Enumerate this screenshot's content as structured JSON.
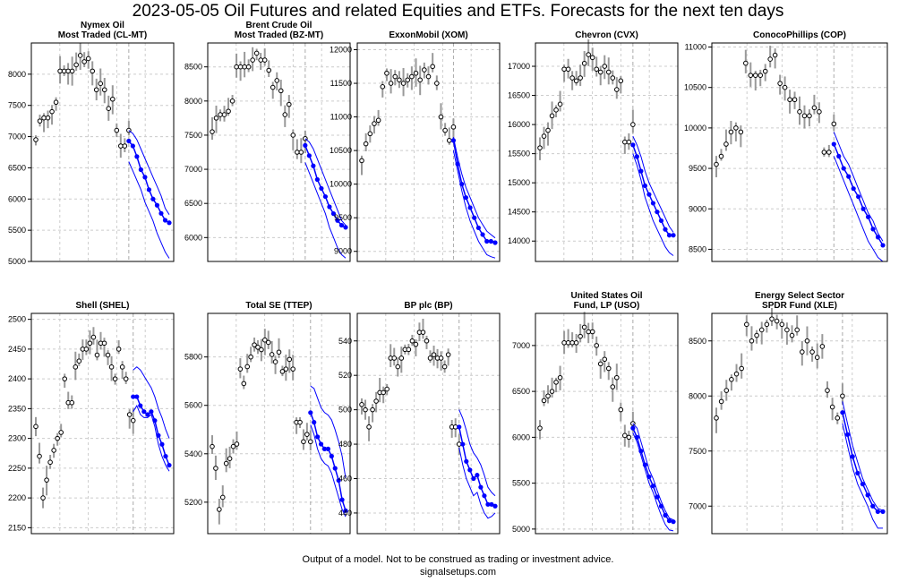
{
  "title": "2023-05-05 Oil Futures and related Equities and ETFs. Forecasts for the next ten days",
  "footer": {
    "disclaimer": "Output of a model. Not to be construed as trading or investment advice.",
    "site": "signalsetups.com"
  },
  "colors": {
    "history": "#000000",
    "range_bar": "#999999",
    "forecast": "#0000ff",
    "grid": "#cccccc"
  },
  "chart_data": [
    {
      "type": "line",
      "title_lines": [
        "Nymex Oil",
        "Most Traded (CL-MT)"
      ],
      "ylim": [
        5000,
        8500
      ],
      "ticks": [
        5000,
        5500,
        6000,
        6500,
        7000,
        7500,
        8000
      ],
      "history": [
        6950,
        7250,
        7300,
        7300,
        7400,
        7550,
        8050,
        8050,
        8050,
        8050,
        8150,
        8300,
        8200,
        8250,
        8050,
        7750,
        7850,
        7750,
        7450,
        7600,
        7100,
        6850,
        6850,
        7100
      ],
      "forecast": [
        6930,
        6850,
        6680,
        6470,
        6350,
        6150,
        6000,
        5900,
        5770,
        5660,
        5620
      ],
      "upper": [
        7100,
        7050,
        6950,
        6800,
        6650,
        6500,
        6350,
        6200,
        6050,
        5850,
        5750
      ],
      "lower": [
        6600,
        6450,
        6300,
        6150,
        5950,
        5800,
        5650,
        5450,
        5300,
        5150,
        5050
      ]
    },
    {
      "type": "line",
      "title_lines": [
        "Brent Crude Oil",
        "Most Traded (BZ-MT)"
      ],
      "ylim": [
        5650,
        8850
      ],
      "ticks": [
        6000,
        6500,
        7000,
        7500,
        8000,
        8500
      ],
      "history": [
        7550,
        7750,
        7800,
        7800,
        7850,
        8000,
        8500,
        8500,
        8500,
        8500,
        8600,
        8700,
        8600,
        8600,
        8450,
        8200,
        8300,
        8150,
        7800,
        7950,
        7500,
        7250,
        7250,
        7450
      ],
      "forecast": [
        7350,
        7200,
        7050,
        6850,
        6720,
        6600,
        6450,
        6350,
        6250,
        6180,
        6150
      ],
      "upper": [
        7450,
        7400,
        7300,
        7150,
        7000,
        6850,
        6700,
        6550,
        6400,
        6250,
        6180
      ],
      "lower": [
        7100,
        6950,
        6800,
        6650,
        6500,
        6350,
        6150,
        6000,
        5850,
        5750,
        5700
      ]
    },
    {
      "type": "line",
      "title_lines": [
        "ExxonMobil (XOM)"
      ],
      "ylim": [
        8850,
        12100
      ],
      "ticks": [
        9000,
        9500,
        10000,
        10500,
        11000,
        11500,
        12000
      ],
      "history": [
        10350,
        10600,
        10750,
        10900,
        10950,
        11450,
        11650,
        11500,
        11600,
        11550,
        11500,
        11550,
        11600,
        11650,
        11550,
        11700,
        11600,
        11750,
        11500,
        11000,
        10800,
        10650,
        10850
      ],
      "forecast": [
        10650,
        10300,
        10000,
        9800,
        9650,
        9500,
        9350,
        9250,
        9150,
        9150,
        9130
      ],
      "upper": [
        10700,
        10400,
        10150,
        9950,
        9800,
        9650,
        9500,
        9400,
        9300,
        9250,
        9200
      ],
      "lower": [
        10500,
        10200,
        9900,
        9650,
        9450,
        9300,
        9150,
        9050,
        8950,
        8920,
        8900
      ]
    },
    {
      "type": "line",
      "title_lines": [
        "Chevron (CVX)"
      ],
      "ylim": [
        13650,
        17400
      ],
      "ticks": [
        14000,
        14500,
        15000,
        15500,
        16000,
        16500,
        17000
      ],
      "history": [
        15600,
        15800,
        15900,
        16150,
        16250,
        16350,
        16950,
        16950,
        16800,
        16750,
        16800,
        17050,
        17200,
        17150,
        16950,
        16900,
        17000,
        16900,
        16800,
        16600,
        16750,
        15700,
        15700,
        16000
      ],
      "forecast": [
        15650,
        15450,
        15200,
        14950,
        14800,
        14650,
        14500,
        14350,
        14200,
        14100,
        14100
      ],
      "upper": [
        15800,
        15650,
        15450,
        15200,
        15000,
        14850,
        14700,
        14550,
        14400,
        14250,
        14150
      ],
      "lower": [
        15500,
        15300,
        15050,
        14750,
        14550,
        14350,
        14200,
        14050,
        13900,
        13800,
        13750
      ]
    },
    {
      "type": "line",
      "title_lines": [
        "ConocoPhillips (COP)"
      ],
      "ylim": [
        8350,
        11050
      ],
      "ticks": [
        8500,
        9000,
        9500,
        10000,
        10500,
        11000
      ],
      "history": [
        9550,
        9650,
        9800,
        9950,
        10000,
        9950,
        10800,
        10650,
        10650,
        10650,
        10700,
        10850,
        10900,
        10550,
        10500,
        10350,
        10350,
        10200,
        10150,
        10150,
        10250,
        10200,
        9700,
        9700,
        10050
      ],
      "forecast": [
        9800,
        9650,
        9500,
        9400,
        9250,
        9150,
        9000,
        8900,
        8750,
        8650,
        8550
      ],
      "upper": [
        9950,
        9800,
        9650,
        9550,
        9400,
        9250,
        9100,
        8950,
        8850,
        8700,
        8600
      ],
      "lower": [
        9650,
        9500,
        9350,
        9200,
        9050,
        8900,
        8750,
        8600,
        8500,
        8400,
        8350
      ]
    },
    {
      "type": "line",
      "title_lines": [
        "Shell (SHEL)"
      ],
      "ylim": [
        2140,
        2510
      ],
      "ticks": [
        2150,
        2200,
        2250,
        2300,
        2350,
        2400,
        2450,
        2500
      ],
      "history": [
        2320,
        2270,
        2200,
        2230,
        2260,
        2280,
        2300,
        2310,
        2400,
        2360,
        2360,
        2420,
        2430,
        2450,
        2450,
        2460,
        2470,
        2440,
        2460,
        2460,
        2440,
        2420,
        2400,
        2450,
        2420,
        2400,
        2340,
        2330
      ],
      "forecast": [
        2370,
        2370,
        2355,
        2345,
        2340,
        2345,
        2330,
        2305,
        2290,
        2270,
        2255
      ],
      "upper": [
        2415,
        2420,
        2415,
        2405,
        2395,
        2385,
        2370,
        2350,
        2335,
        2315,
        2300
      ],
      "lower": [
        2345,
        2355,
        2340,
        2335,
        2335,
        2340,
        2320,
        2290,
        2270,
        2255,
        2245
      ]
    },
    {
      "type": "line",
      "title_lines": [
        "Total SE (TTEP)"
      ],
      "ylim": [
        5070,
        5980
      ],
      "ticks": [
        5200,
        5400,
        5600,
        5800
      ],
      "history": [
        5430,
        5340,
        5170,
        5220,
        5360,
        5380,
        5430,
        5440,
        5750,
        5690,
        5760,
        5800,
        5850,
        5840,
        5830,
        5870,
        5860,
        5810,
        5780,
        5820,
        5740,
        5750,
        5790,
        5750,
        5530,
        5530,
        5450,
        5480,
        5450
      ],
      "forecast": [
        5570,
        5530,
        5470,
        5440,
        5420,
        5420,
        5390,
        5340,
        5290,
        5210,
        5165
      ],
      "upper": [
        5680,
        5670,
        5630,
        5590,
        5570,
        5560,
        5540,
        5500,
        5450,
        5390,
        5300
      ],
      "lower": [
        5520,
        5480,
        5420,
        5380,
        5360,
        5350,
        5320,
        5270,
        5220,
        5170,
        5140
      ]
    },
    {
      "type": "line",
      "title_lines": [
        "BP plc (BP)"
      ],
      "ylim": [
        428,
        556
      ],
      "ticks": [
        440,
        460,
        480,
        500,
        520,
        540
      ],
      "history": [
        503,
        500,
        490,
        500,
        505,
        510,
        510,
        512,
        530,
        530,
        525,
        530,
        535,
        535,
        540,
        538,
        545,
        545,
        540,
        530,
        532,
        530,
        530,
        525,
        532,
        490,
        490,
        480
      ],
      "forecast": [
        490,
        480,
        470,
        465,
        460,
        462,
        455,
        450,
        445,
        445,
        444
      ],
      "upper": [
        500,
        495,
        488,
        480,
        475,
        472,
        468,
        462,
        455,
        452,
        450
      ],
      "lower": [
        478,
        468,
        460,
        455,
        450,
        452,
        445,
        440,
        437,
        438,
        440
      ]
    },
    {
      "type": "line",
      "title_lines": [
        "United States Oil",
        "Fund, LP (USO)"
      ],
      "ylim": [
        4950,
        7350
      ],
      "ticks": [
        5000,
        5500,
        6000,
        6500,
        7000
      ],
      "history": [
        6100,
        6400,
        6450,
        6500,
        6600,
        6650,
        7030,
        7030,
        7030,
        7030,
        7100,
        7200,
        7150,
        7150,
        7000,
        6800,
        6850,
        6750,
        6550,
        6650,
        6300,
        6020,
        6000,
        6150
      ],
      "forecast": [
        6100,
        6000,
        5850,
        5700,
        5570,
        5470,
        5350,
        5250,
        5150,
        5090,
        5080
      ],
      "upper": [
        6150,
        6100,
        5950,
        5800,
        5650,
        5550,
        5420,
        5300,
        5200,
        5120,
        5100
      ],
      "lower": [
        6050,
        5950,
        5800,
        5650,
        5500,
        5400,
        5270,
        5150,
        5050,
        4990,
        4980
      ]
    },
    {
      "type": "line",
      "title_lines": [
        "Energy Select Sector",
        "SPDR Fund (XLE)"
      ],
      "ylim": [
        6750,
        8750
      ],
      "ticks": [
        7000,
        7500,
        8000,
        8500
      ],
      "history": [
        7800,
        7950,
        8050,
        8150,
        8200,
        8250,
        8650,
        8500,
        8550,
        8600,
        8650,
        8700,
        8680,
        8650,
        8600,
        8550,
        8600,
        8400,
        8500,
        8400,
        8350,
        8450,
        8050,
        7900,
        7800,
        8000
      ],
      "forecast": [
        7850,
        7650,
        7450,
        7300,
        7200,
        7100,
        7000,
        6950,
        6950
      ],
      "upper": [
        7950,
        7750,
        7550,
        7400,
        7250,
        7150,
        7050,
        6980,
        6960
      ],
      "lower": [
        7750,
        7550,
        7350,
        7200,
        7100,
        7000,
        6880,
        6800,
        6800
      ]
    }
  ]
}
